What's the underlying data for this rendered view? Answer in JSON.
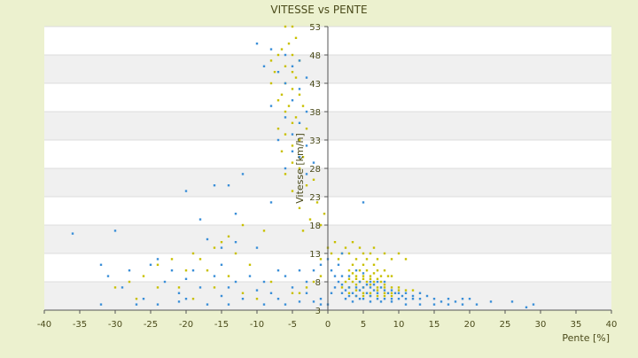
{
  "chart_data": {
    "type": "scatter",
    "title": "VITESSE vs PENTE",
    "xlabel": "Pente [%]",
    "ylabel": "Vitesse [km/h]",
    "xlim": [
      -40,
      40
    ],
    "ylim": [
      3,
      53
    ],
    "x_ticks": [
      -40,
      -35,
      -30,
      -25,
      -20,
      -15,
      -10,
      -5,
      0,
      5,
      10,
      15,
      20,
      25,
      30,
      35,
      40
    ],
    "y_ticks": [
      3,
      8,
      13,
      18,
      23,
      28,
      33,
      38,
      43,
      48,
      53
    ],
    "grid": "horizontal alternating bands",
    "legend": "none",
    "colors": {
      "yellow": "#c8c000",
      "blue": "#3a8fd8"
    },
    "series": [
      {
        "color": "yellow",
        "points": [
          [
            -6,
            53
          ],
          [
            -5,
            53
          ],
          [
            -4.5,
            51
          ],
          [
            -5.5,
            50
          ],
          [
            -6.5,
            49
          ],
          [
            -7,
            48
          ],
          [
            -5,
            48
          ],
          [
            -4,
            47
          ],
          [
            -8,
            47
          ],
          [
            -6,
            46
          ],
          [
            -5,
            45
          ],
          [
            -7.5,
            45
          ],
          [
            -4.5,
            44
          ],
          [
            -6,
            43
          ],
          [
            -8,
            43
          ],
          [
            -5,
            42
          ],
          [
            -6.5,
            41
          ],
          [
            -4,
            41
          ],
          [
            -7,
            40
          ],
          [
            -5.5,
            39
          ],
          [
            -3.5,
            39
          ],
          [
            -6,
            38
          ],
          [
            -4.5,
            37
          ],
          [
            -5,
            36
          ],
          [
            -7,
            35
          ],
          [
            -3,
            35
          ],
          [
            -6,
            34
          ],
          [
            -4,
            33
          ],
          [
            -5,
            32
          ],
          [
            -6.5,
            31
          ],
          [
            -3.5,
            30
          ],
          [
            -5,
            29
          ],
          [
            -4,
            28
          ],
          [
            -6,
            27
          ],
          [
            -2,
            26
          ],
          [
            -3,
            25
          ],
          [
            -5,
            24
          ],
          [
            -1.5,
            22
          ],
          [
            -4,
            21
          ],
          [
            -0.5,
            20
          ],
          [
            -2.5,
            19
          ],
          [
            -1,
            18
          ],
          [
            -3.5,
            17
          ],
          [
            -9,
            17
          ],
          [
            -12,
            18
          ],
          [
            -14,
            16
          ],
          [
            -15,
            15
          ],
          [
            -16,
            14
          ],
          [
            -19,
            13
          ],
          [
            -13,
            13
          ],
          [
            -18,
            12
          ],
          [
            -22,
            12
          ],
          [
            -24,
            11
          ],
          [
            -11,
            11
          ],
          [
            -17,
            10
          ],
          [
            -20,
            10
          ],
          [
            -26,
            9
          ],
          [
            -14,
            9
          ],
          [
            -28,
            8
          ],
          [
            -8,
            8
          ],
          [
            -21,
            7
          ],
          [
            -24,
            7
          ],
          [
            -16,
            7
          ],
          [
            -12,
            6
          ],
          [
            -5,
            6
          ],
          [
            -19,
            5
          ],
          [
            -27,
            5
          ],
          [
            -30,
            7
          ],
          [
            -10,
            5
          ],
          [
            -3,
            7
          ],
          [
            -1,
            9
          ],
          [
            -1,
            12
          ],
          [
            0,
            14
          ],
          [
            -2,
            8
          ],
          [
            -4,
            6
          ],
          [
            0.5,
            13
          ],
          [
            1,
            15
          ],
          [
            1.5,
            12
          ],
          [
            2,
            13
          ],
          [
            2.5,
            14
          ],
          [
            3,
            13
          ],
          [
            3.5,
            15
          ],
          [
            4,
            12
          ],
          [
            4.5,
            14
          ],
          [
            5,
            13
          ],
          [
            5.5,
            12
          ],
          [
            6,
            13
          ],
          [
            6.5,
            14
          ],
          [
            7,
            12
          ],
          [
            8,
            13
          ],
          [
            9,
            12
          ],
          [
            10,
            13
          ],
          [
            11,
            12
          ],
          [
            3,
            10
          ],
          [
            3.5,
            11
          ],
          [
            4,
            9
          ],
          [
            4.5,
            10
          ],
          [
            5,
            11
          ],
          [
            5.5,
            10
          ],
          [
            6,
            9
          ],
          [
            6.5,
            11
          ],
          [
            7,
            10
          ],
          [
            7.5,
            9
          ],
          [
            8,
            10
          ],
          [
            9,
            9
          ],
          [
            2.5,
            8
          ],
          [
            3,
            8.5
          ],
          [
            3.5,
            8
          ],
          [
            4,
            8.5
          ],
          [
            4.5,
            8
          ],
          [
            5,
            8.5
          ],
          [
            5.5,
            8
          ],
          [
            6,
            8.5
          ],
          [
            6.5,
            8
          ],
          [
            7,
            8.5
          ],
          [
            7.5,
            8
          ],
          [
            8,
            7.5
          ],
          [
            2,
            7
          ],
          [
            3,
            7
          ],
          [
            4,
            7.5
          ],
          [
            5,
            7
          ],
          [
            6,
            7.5
          ],
          [
            7,
            7
          ],
          [
            8,
            7
          ],
          [
            9,
            7
          ],
          [
            10,
            7
          ],
          [
            11,
            6.5
          ],
          [
            12,
            6.5
          ],
          [
            3,
            6
          ],
          [
            4,
            6.5
          ],
          [
            5,
            6
          ],
          [
            6,
            6
          ],
          [
            7,
            6.5
          ],
          [
            8,
            6
          ],
          [
            9,
            6
          ],
          [
            10,
            6.5
          ],
          [
            4,
            5.5
          ],
          [
            5,
            5.5
          ],
          [
            6,
            5.5
          ],
          [
            7,
            5.5
          ],
          [
            8,
            5.5
          ],
          [
            9,
            5.5
          ],
          [
            3.5,
            9.5
          ],
          [
            5,
            9
          ],
          [
            6.5,
            9.5
          ],
          [
            8.5,
            9
          ]
        ]
      },
      {
        "color": "blue",
        "points": [
          [
            -10,
            50
          ],
          [
            -8,
            49
          ],
          [
            -6,
            48
          ],
          [
            -4,
            47
          ],
          [
            -9,
            46
          ],
          [
            -5,
            46
          ],
          [
            -7,
            45
          ],
          [
            -3,
            44
          ],
          [
            -6,
            43
          ],
          [
            -4,
            42
          ],
          [
            -5,
            40
          ],
          [
            -8,
            39
          ],
          [
            -3,
            38
          ],
          [
            -6,
            37
          ],
          [
            -4,
            36
          ],
          [
            -5,
            34
          ],
          [
            -7,
            33
          ],
          [
            -3,
            32
          ],
          [
            -5,
            31
          ],
          [
            -4,
            30
          ],
          [
            -2,
            29
          ],
          [
            -6,
            28
          ],
          [
            -3,
            27
          ],
          [
            -12,
            27
          ],
          [
            -16,
            25
          ],
          [
            -14,
            25
          ],
          [
            -20,
            24
          ],
          [
            -8,
            22
          ],
          [
            -13,
            20
          ],
          [
            -18,
            19
          ],
          [
            5,
            22
          ],
          [
            -36,
            16.5
          ],
          [
            -30,
            17
          ],
          [
            -17,
            15.5
          ],
          [
            -13,
            15
          ],
          [
            -10,
            14
          ],
          [
            -15,
            14
          ],
          [
            -24,
            12
          ],
          [
            -32,
            11
          ],
          [
            -28,
            10
          ],
          [
            -25,
            11
          ],
          [
            -22,
            10
          ],
          [
            -19,
            10
          ],
          [
            -15,
            11
          ],
          [
            -11,
            9
          ],
          [
            -7,
            10
          ],
          [
            -31,
            9
          ],
          [
            -29,
            7
          ],
          [
            -23,
            8
          ],
          [
            -20,
            8.5
          ],
          [
            -16,
            9
          ],
          [
            -13,
            8
          ],
          [
            -9,
            8
          ],
          [
            -6,
            9
          ],
          [
            -3,
            8
          ],
          [
            -2,
            10
          ],
          [
            -1,
            11
          ],
          [
            -4,
            10
          ],
          [
            -21,
            6
          ],
          [
            -18,
            7
          ],
          [
            -14,
            7
          ],
          [
            -10,
            6.5
          ],
          [
            -8,
            6
          ],
          [
            -5,
            7
          ],
          [
            -3,
            6
          ],
          [
            -1,
            5
          ],
          [
            -26,
            5
          ],
          [
            -20,
            5
          ],
          [
            -15,
            5.5
          ],
          [
            -12,
            5
          ],
          [
            -7,
            5
          ],
          [
            -2,
            4.5
          ],
          [
            -32,
            4
          ],
          [
            -27,
            4
          ],
          [
            -24,
            4
          ],
          [
            -21,
            4.5
          ],
          [
            -17,
            4
          ],
          [
            -14,
            4
          ],
          [
            -9,
            4
          ],
          [
            -6,
            4
          ],
          [
            -4,
            4.5
          ],
          [
            -1,
            4
          ],
          [
            0,
            4
          ],
          [
            0.5,
            6
          ],
          [
            1,
            7
          ],
          [
            1.5,
            8
          ],
          [
            2,
            7.5
          ],
          [
            2.5,
            6.5
          ],
          [
            3,
            7
          ],
          [
            3.5,
            6
          ],
          [
            4,
            7
          ],
          [
            4.5,
            6.5
          ],
          [
            5,
            7
          ],
          [
            5.5,
            6
          ],
          [
            6,
            7
          ],
          [
            6.5,
            6.5
          ],
          [
            7,
            6
          ],
          [
            7.5,
            7
          ],
          [
            8,
            6.5
          ],
          [
            8.5,
            6
          ],
          [
            9,
            6.5
          ],
          [
            9.5,
            6
          ],
          [
            10,
            6
          ],
          [
            10.5,
            5.5
          ],
          [
            11,
            6
          ],
          [
            12,
            5.5
          ],
          [
            13,
            6
          ],
          [
            2,
            6
          ],
          [
            3,
            5.5
          ],
          [
            4,
            5.5
          ],
          [
            5,
            5
          ],
          [
            6,
            5.5
          ],
          [
            7,
            5
          ],
          [
            8,
            5
          ],
          [
            9,
            5
          ],
          [
            10,
            5
          ],
          [
            11,
            5
          ],
          [
            12,
            5
          ],
          [
            13,
            5
          ],
          [
            14,
            5.5
          ],
          [
            15,
            5
          ],
          [
            16,
            4.5
          ],
          [
            17,
            5
          ],
          [
            18,
            4.5
          ],
          [
            19,
            5
          ],
          [
            20,
            5
          ],
          [
            21,
            4
          ],
          [
            23,
            4.5
          ],
          [
            26,
            4.5
          ],
          [
            28,
            3.5
          ],
          [
            29,
            4
          ],
          [
            2.5,
            5
          ],
          [
            3.5,
            4.5
          ],
          [
            4.5,
            5
          ],
          [
            6,
            4.5
          ],
          [
            7.5,
            4.5
          ],
          [
            9,
            4.5
          ],
          [
            11,
            4
          ],
          [
            13,
            4
          ],
          [
            15,
            4
          ],
          [
            17,
            4
          ],
          [
            19,
            4
          ],
          [
            1,
            9
          ],
          [
            2,
            9
          ],
          [
            0.5,
            10
          ],
          [
            1.5,
            11
          ],
          [
            0,
            12
          ],
          [
            2,
            13
          ],
          [
            3,
            9
          ],
          [
            4,
            10
          ],
          [
            5,
            9.5
          ],
          [
            6,
            8
          ],
          [
            7,
            8
          ],
          [
            8,
            8
          ],
          [
            4.5,
            8
          ],
          [
            5.5,
            7.5
          ],
          [
            6.5,
            7.5
          ]
        ]
      }
    ]
  }
}
